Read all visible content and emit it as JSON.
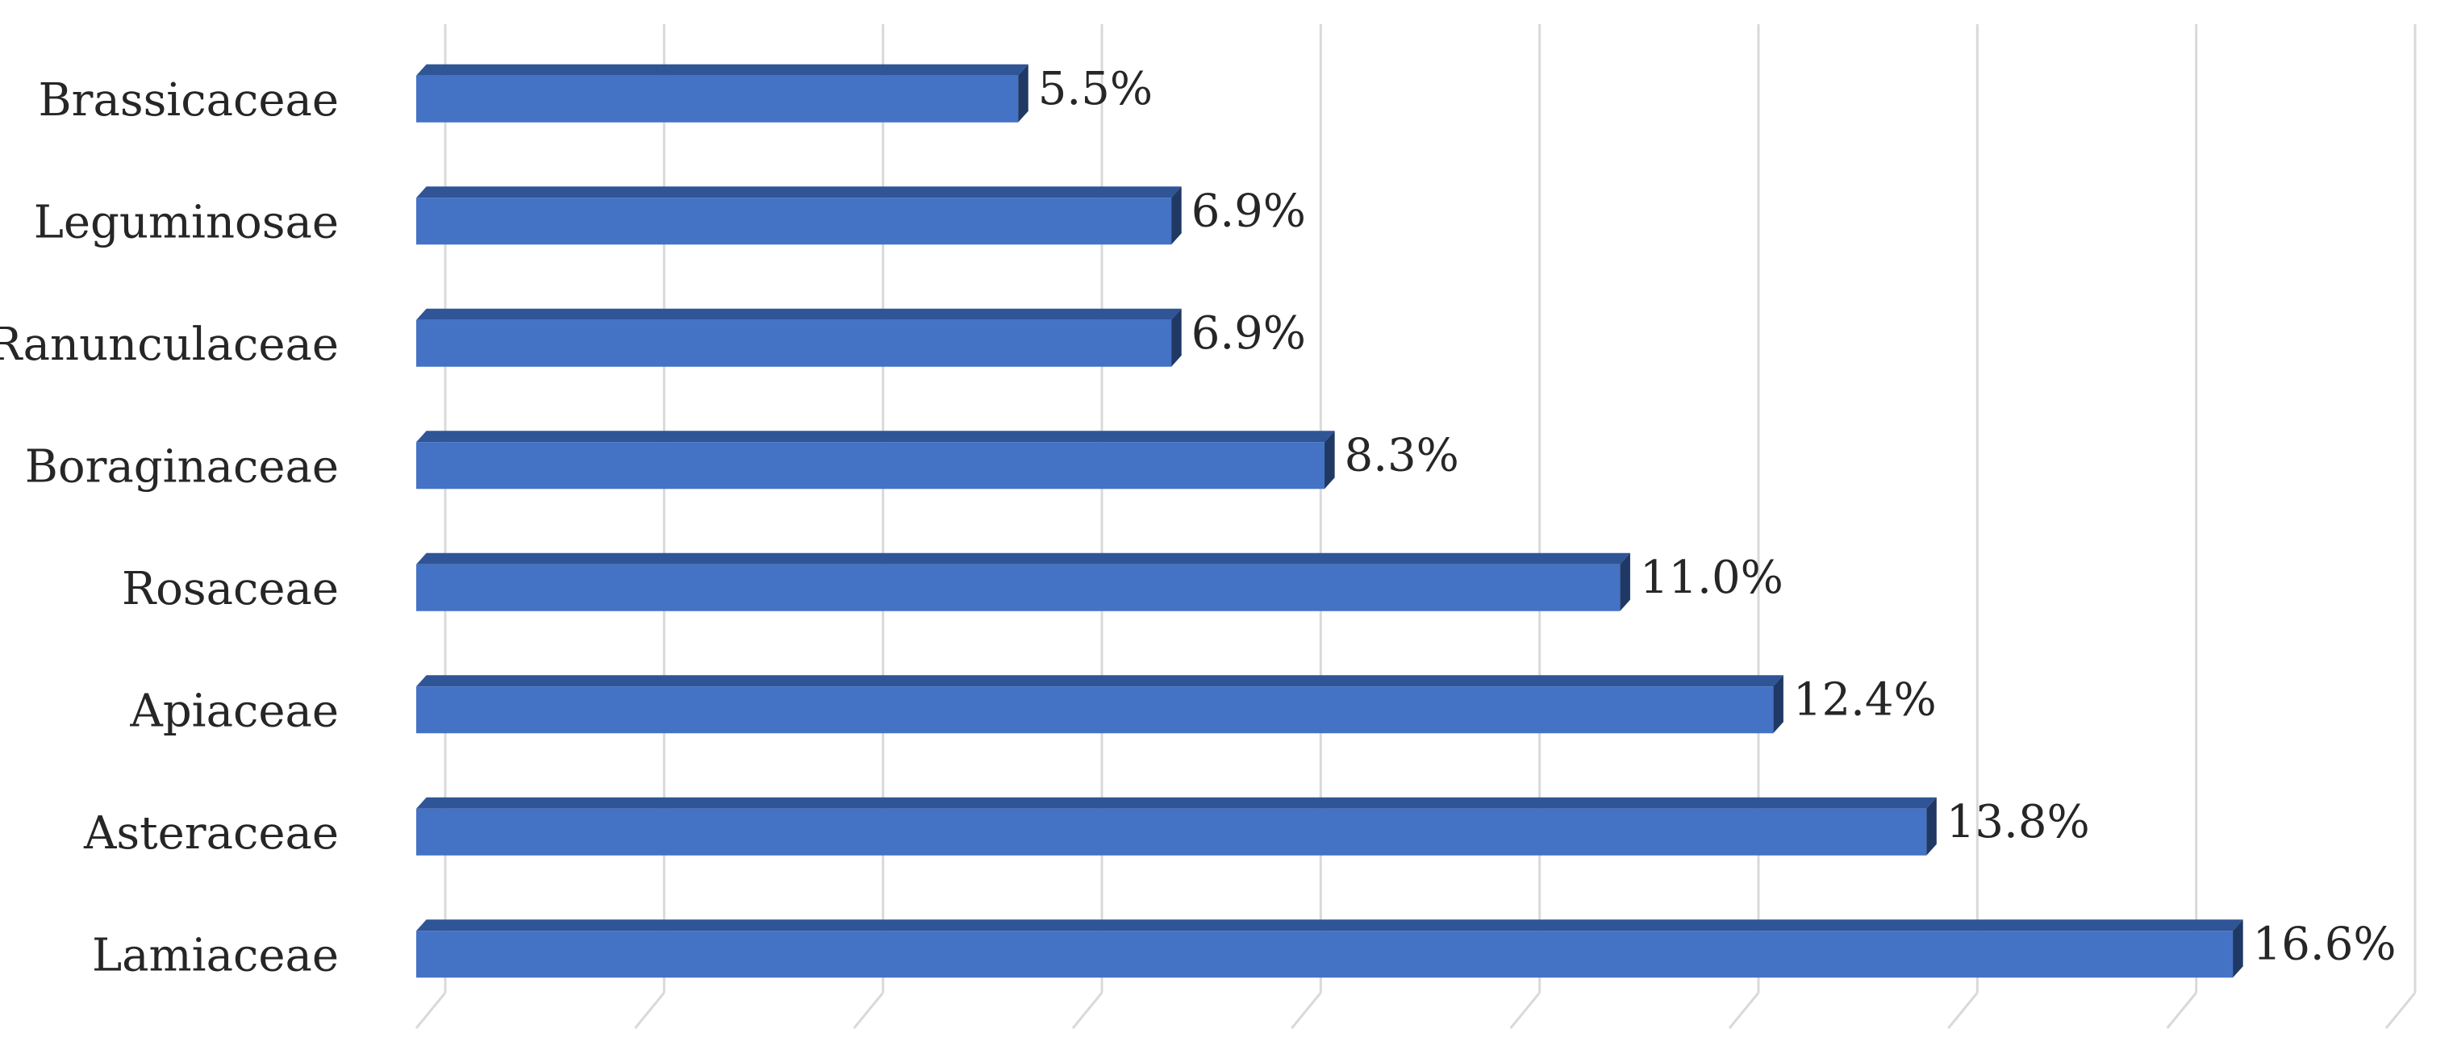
{
  "chart_data": {
    "type": "bar",
    "orientation": "horizontal",
    "style": "3d",
    "title": "",
    "xlabel": "",
    "ylabel": "",
    "categories": [
      "Brassicaceae",
      "Leguminosae",
      "Ranunculaceae",
      "Boraginaceae",
      "Rosaceae",
      "Apiaceae",
      "Asteraceae",
      "Lamiaceae"
    ],
    "values": [
      5.5,
      6.9,
      6.9,
      8.3,
      11.0,
      12.4,
      13.8,
      16.6
    ],
    "value_labels": [
      "5.5%",
      "6.9%",
      "6.9%",
      "8.3%",
      "11.0%",
      "12.4%",
      "13.8%",
      "16.6%"
    ],
    "unit": "%",
    "xlim": [
      0,
      18
    ],
    "gridline_interval": 2,
    "grid": true,
    "legend": "none",
    "colors": {
      "bar_front": "#4472C4",
      "bar_top": "#2F5597",
      "bar_side": "#203864",
      "gridline": "#D9D9D9",
      "text": "#262626"
    }
  }
}
